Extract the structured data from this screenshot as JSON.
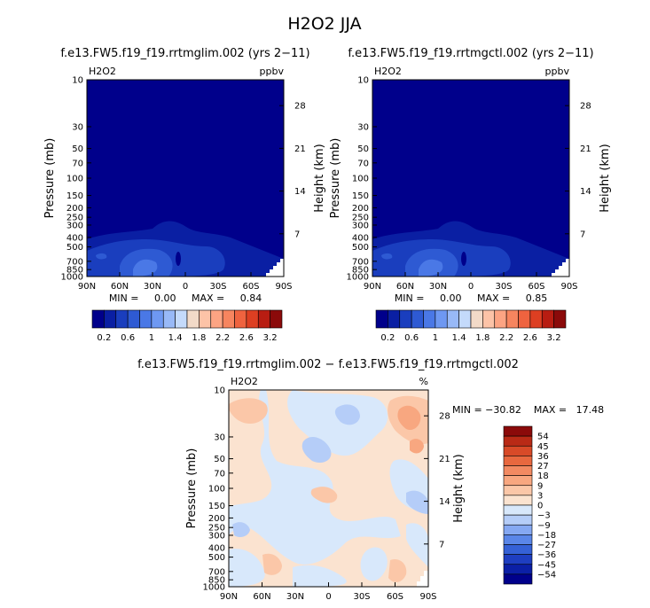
{
  "page": {
    "title": "H2O2 JJA",
    "figure_type": "contour plots, zonal mean pressure-latitude cross sections"
  },
  "colors": {
    "abs_scale": [
      "#00008b",
      "#0a1fa3",
      "#1a3ebe",
      "#2e5ad3",
      "#4a78e6",
      "#6e98f2",
      "#98b9f7",
      "#c4dafb",
      "#f2dac8",
      "#fcc3a7",
      "#fca483",
      "#f7855f",
      "#ef633f",
      "#dd3f22",
      "#b81d12",
      "#8b0a0a"
    ],
    "diff_scale": [
      "#00008b",
      "#0b1fa6",
      "#1e3ec1",
      "#3561d6",
      "#5a86e8",
      "#85a8f2",
      "#b5cdf8",
      "#d8e8fb",
      "#fbe3d0",
      "#fbc7a8",
      "#f8a780",
      "#f28a62",
      "#e8683f",
      "#d84a28",
      "#b92a16",
      "#8b0a0a"
    ]
  },
  "chart_data": [
    {
      "type": "heatmap",
      "title": "f.e13.FW5.f19_f19.rrtmglim.002 (yrs 2−11)",
      "left_label": "H2O2",
      "right_label": "ppbv",
      "ylabel": "Pressure (mb)",
      "ylabel_right": "Height (km)",
      "x_ticks": [
        "90N",
        "60N",
        "30N",
        "0",
        "30S",
        "60S",
        "90S"
      ],
      "y_ticks": [
        "10",
        "30",
        "50",
        "70",
        "100",
        "150",
        "200",
        "250",
        "300",
        "400",
        "500",
        "700",
        "850",
        "1000"
      ],
      "y_ticks_right": [
        "28",
        "21",
        "14",
        "7"
      ],
      "stats": {
        "min": "0.00",
        "max": "0.84"
      },
      "stats_text": "MIN =     0.00     MAX =     0.84",
      "colorbar_labels": [
        "0.2",
        "0.6",
        "1",
        "1.4",
        "1.8",
        "2.2",
        "2.6",
        "3.2"
      ]
    },
    {
      "type": "heatmap",
      "title": "f.e13.FW5.f19_f19.rrtmgctl.002 (yrs 2−11)",
      "left_label": "H2O2",
      "right_label": "ppbv",
      "ylabel": "Pressure (mb)",
      "ylabel_right": "Height (km)",
      "x_ticks": [
        "90N",
        "60N",
        "30N",
        "0",
        "30S",
        "60S",
        "90S"
      ],
      "y_ticks": [
        "10",
        "30",
        "50",
        "70",
        "100",
        "150",
        "200",
        "250",
        "300",
        "400",
        "500",
        "700",
        "850",
        "1000"
      ],
      "y_ticks_right": [
        "28",
        "21",
        "14",
        "7"
      ],
      "stats": {
        "min": "0.00",
        "max": "0.85"
      },
      "stats_text": "MIN =     0.00     MAX =     0.85",
      "colorbar_labels": [
        "0.2",
        "0.6",
        "1",
        "1.4",
        "1.8",
        "2.2",
        "2.6",
        "3.2"
      ]
    },
    {
      "type": "heatmap",
      "title": "f.e13.FW5.f19_f19.rrtmglim.002 − f.e13.FW5.f19_f19.rrtmgctl.002",
      "left_label": "H2O2",
      "right_label": "%",
      "ylabel": "Pressure (mb)",
      "ylabel_right": "Height (km)",
      "x_ticks": [
        "90N",
        "60N",
        "30N",
        "0",
        "30S",
        "60S",
        "90S"
      ],
      "y_ticks": [
        "10",
        "30",
        "50",
        "70",
        "100",
        "150",
        "200",
        "250",
        "300",
        "400",
        "500",
        "700",
        "850",
        "1000"
      ],
      "y_ticks_right": [
        "28",
        "21",
        "14",
        "7"
      ],
      "stats": {
        "min": "−30.82",
        "max": "17.48"
      },
      "stats_text": "MIN = −30.82    MAX =   17.48",
      "colorbar_labels": [
        "54",
        "45",
        "36",
        "27",
        "18",
        "9",
        "3",
        "0",
        "−3",
        "−9",
        "−18",
        "−27",
        "−36",
        "−45",
        "−54"
      ]
    }
  ]
}
